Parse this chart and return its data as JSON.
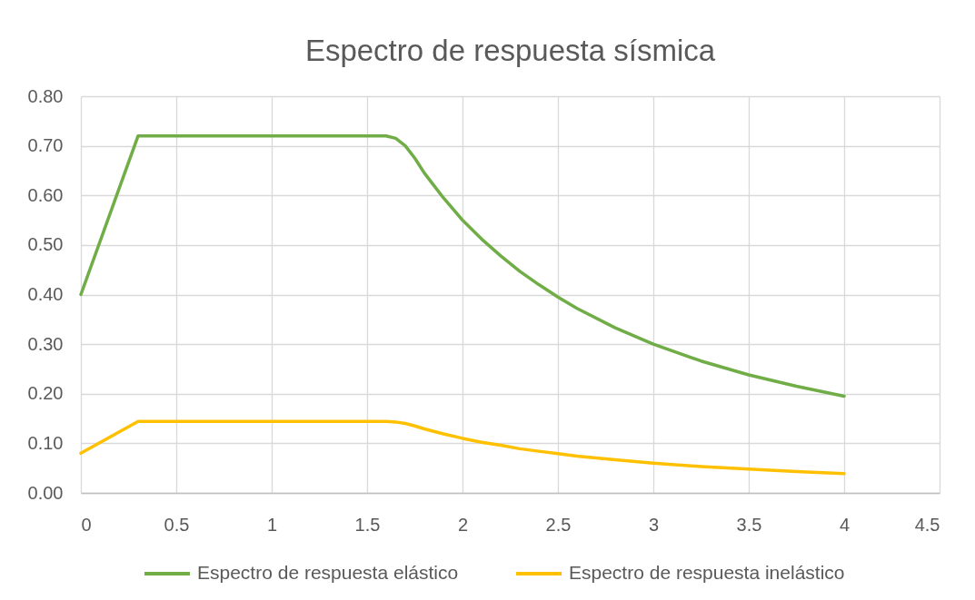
{
  "chart_data": {
    "type": "line",
    "title": "Espectro de respuesta sísmica",
    "series": [
      {
        "name": "Espectro de respuesta elástico",
        "color": "#70ad47",
        "x": [
          0,
          0.3,
          1.0,
          1.5,
          1.6,
          1.65,
          1.7,
          1.75,
          1.8,
          1.85,
          1.9,
          2.0,
          2.1,
          2.2,
          2.3,
          2.4,
          2.5,
          2.6,
          2.8,
          3.0,
          3.25,
          3.5,
          3.75,
          4.0
        ],
        "values": [
          0.4,
          0.72,
          0.72,
          0.72,
          0.72,
          0.715,
          0.7,
          0.675,
          0.645,
          0.62,
          0.595,
          0.55,
          0.512,
          0.478,
          0.447,
          0.42,
          0.395,
          0.372,
          0.333,
          0.3,
          0.266,
          0.238,
          0.215,
          0.195
        ]
      },
      {
        "name": "Espectro de respuesta inelástico",
        "color": "#ffc000",
        "x": [
          0,
          0.3,
          1.0,
          1.5,
          1.6,
          1.65,
          1.7,
          1.75,
          1.8,
          1.85,
          1.9,
          2.0,
          2.1,
          2.2,
          2.3,
          2.4,
          2.5,
          2.6,
          2.8,
          3.0,
          3.25,
          3.5,
          3.75,
          4.0
        ],
        "values": [
          0.08,
          0.144,
          0.144,
          0.144,
          0.144,
          0.143,
          0.14,
          0.135,
          0.129,
          0.124,
          0.119,
          0.11,
          0.102,
          0.096,
          0.089,
          0.084,
          0.079,
          0.074,
          0.067,
          0.06,
          0.053,
          0.048,
          0.043,
          0.039
        ]
      }
    ],
    "xlim": [
      0,
      4.5
    ],
    "xticks": [
      0,
      0.5,
      1,
      1.5,
      2,
      2.5,
      3,
      3.5,
      4,
      4.5
    ],
    "ylim": [
      0,
      0.8
    ],
    "yticks": [
      {
        "value": 0,
        "label": "0.00"
      },
      {
        "value": 0.1,
        "label": "0.10"
      },
      {
        "value": 0.2,
        "label": "0.20"
      },
      {
        "value": 0.3,
        "label": "0.30"
      },
      {
        "value": 0.4,
        "label": "0.40"
      },
      {
        "value": 0.5,
        "label": "0.50"
      },
      {
        "value": 0.6,
        "label": "0.60"
      },
      {
        "value": 0.7,
        "label": "0.70"
      },
      {
        "value": 0.8,
        "label": "0.80"
      }
    ],
    "grid": true,
    "legend": "bottom"
  }
}
